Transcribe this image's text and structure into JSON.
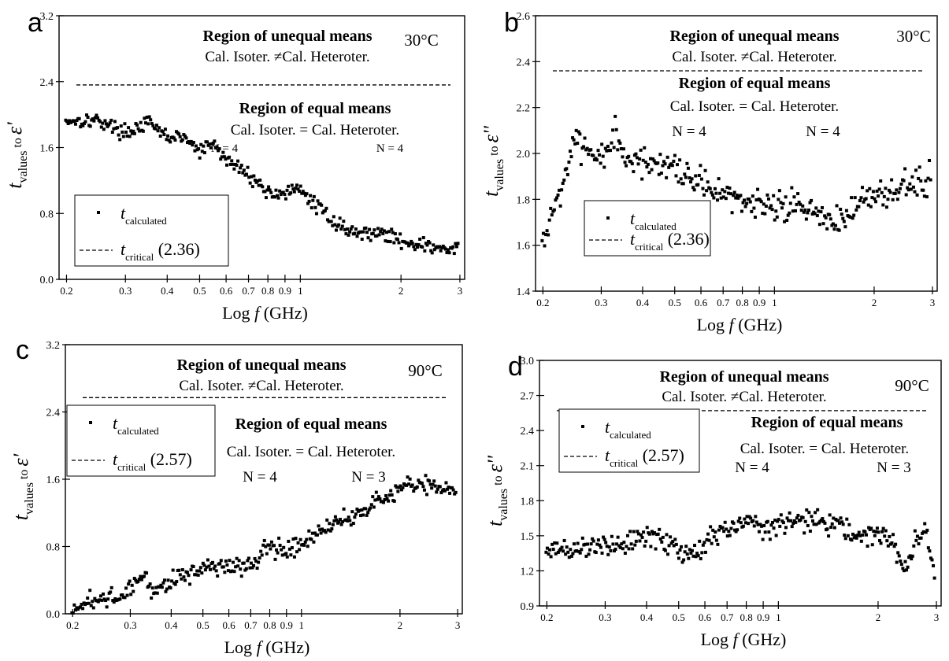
{
  "chart_data": [
    {
      "panel": "a",
      "type": "scatter",
      "temperature": "30°C",
      "ylabel": "t",
      "ylabel_sub": "values",
      "ylabel_to": "to",
      "ylabel_var": "ε'",
      "xlabel_pre": "Log ",
      "xlabel_var": "f",
      "xlabel_post": " (GHz)",
      "x_scale": "log",
      "xlim": [
        0.19,
        3.1
      ],
      "ylim": [
        0.0,
        3.2
      ],
      "x_ticks": [
        0.2,
        0.3,
        0.4,
        0.5,
        0.6,
        0.7,
        0.8,
        0.9,
        1,
        2,
        3
      ],
      "x_tick_labels": [
        "0.2",
        "0.3",
        "0.4",
        "0.5",
        "0.6",
        "0.7",
        "0.8",
        "0.9",
        "1",
        "2",
        "3"
      ],
      "y_ticks": [
        0.0,
        0.8,
        1.6,
        2.4,
        3.2
      ],
      "y_tick_labels": [
        "0.0",
        "0.8",
        "1.6",
        "2.4",
        "3.2"
      ],
      "critical_value": 2.36,
      "annotations": {
        "unequal_title": "Region of unequal means",
        "unequal_sub": "Cal. Isoter. ≠Cal. Heteroter.",
        "equal_title": "Region of equal means",
        "equal_sub": "Cal. Isoter. = Cal. Heteroter.",
        "n1": "N = 4",
        "n2": "N = 4"
      },
      "legend": {
        "calc_label": "t",
        "calc_sub": "calculated",
        "crit_label": "t",
        "crit_sub": "critical",
        "crit_value": "(2.36)",
        "placement": "bottom-left"
      },
      "trend": [
        [
          0.2,
          1.93
        ],
        [
          0.25,
          1.93
        ],
        [
          0.3,
          1.78
        ],
        [
          0.35,
          1.9
        ],
        [
          0.4,
          1.73
        ],
        [
          0.45,
          1.72
        ],
        [
          0.5,
          1.55
        ],
        [
          0.55,
          1.65
        ],
        [
          0.6,
          1.45
        ],
        [
          0.7,
          1.28
        ],
        [
          0.8,
          1.05
        ],
        [
          0.9,
          1.05
        ],
        [
          1.0,
          1.08
        ],
        [
          1.1,
          0.92
        ],
        [
          1.3,
          0.66
        ],
        [
          1.5,
          0.55
        ],
        [
          1.7,
          0.58
        ],
        [
          2.0,
          0.47
        ],
        [
          2.3,
          0.42
        ],
        [
          2.6,
          0.37
        ],
        [
          3.0,
          0.36
        ]
      ],
      "noise": 0.07
    },
    {
      "panel": "b",
      "type": "scatter",
      "temperature": "30°C",
      "ylabel": "t",
      "ylabel_sub": "values",
      "ylabel_to": "to",
      "ylabel_var": "ε''",
      "xlabel_pre": "Log ",
      "xlabel_var": "f",
      "xlabel_post": " (GHz)",
      "x_scale": "log",
      "xlim": [
        0.19,
        3.1
      ],
      "ylim": [
        1.4,
        2.6
      ],
      "x_ticks": [
        0.2,
        0.3,
        0.4,
        0.5,
        0.6,
        0.7,
        0.8,
        0.9,
        1,
        2,
        3
      ],
      "x_tick_labels": [
        "0.2",
        "0.3",
        "0.4",
        "0.5",
        "0.6",
        "0.7",
        "0.8",
        "0.9",
        "1",
        "2",
        "3"
      ],
      "y_ticks": [
        1.4,
        1.6,
        1.8,
        2.0,
        2.2,
        2.4,
        2.6
      ],
      "y_tick_labels": [
        "1.4",
        "1.6",
        "1.8",
        "2.0",
        "2.2",
        "2.4",
        "2.6"
      ],
      "critical_value": 2.36,
      "annotations": {
        "unequal_title": "Region of unequal means",
        "unequal_sub": "Cal. Isoter. ≠Cal. Heteroter.",
        "equal_title": "Region of equal means",
        "equal_sub": "Cal. Isoter. = Cal. Heteroter.",
        "n1": "N = 4",
        "n2": "N = 4"
      },
      "legend": {
        "calc_label": "t",
        "calc_sub": "calculated",
        "crit_label": "t",
        "crit_sub": "critical",
        "crit_value": "(2.36)",
        "placement": "bottom-left"
      },
      "trend": [
        [
          0.2,
          1.6
        ],
        [
          0.21,
          1.72
        ],
        [
          0.23,
          1.88
        ],
        [
          0.25,
          2.05
        ],
        [
          0.28,
          1.98
        ],
        [
          0.3,
          1.95
        ],
        [
          0.33,
          2.08
        ],
        [
          0.36,
          1.95
        ],
        [
          0.4,
          1.97
        ],
        [
          0.45,
          1.95
        ],
        [
          0.5,
          1.91
        ],
        [
          0.6,
          1.85
        ],
        [
          0.7,
          1.82
        ],
        [
          0.8,
          1.8
        ],
        [
          1.0,
          1.77
        ],
        [
          1.2,
          1.76
        ],
        [
          1.4,
          1.72
        ],
        [
          1.6,
          1.72
        ],
        [
          2.0,
          1.8
        ],
        [
          2.5,
          1.85
        ],
        [
          3.0,
          1.88
        ]
      ],
      "noise": 0.06
    },
    {
      "panel": "c",
      "type": "scatter",
      "temperature": "90°C",
      "ylabel": "t",
      "ylabel_sub": "values",
      "ylabel_to": "to",
      "ylabel_var": "ε'",
      "xlabel_pre": "Log ",
      "xlabel_var": "f",
      "xlabel_post": " (GHz)",
      "x_scale": "log",
      "xlim": [
        0.19,
        3.1
      ],
      "ylim": [
        0.0,
        3.2
      ],
      "x_ticks": [
        0.2,
        0.3,
        0.4,
        0.5,
        0.6,
        0.7,
        0.8,
        0.9,
        1,
        2,
        3
      ],
      "x_tick_labels": [
        "0.2",
        "0.3",
        "0.4",
        "0.5",
        "0.6",
        "0.7",
        "0.8",
        "0.9",
        "1",
        "2",
        "3"
      ],
      "y_ticks": [
        0.0,
        0.8,
        1.6,
        2.4,
        3.2
      ],
      "y_tick_labels": [
        "0.0",
        "0.8",
        "1.6",
        "2.4",
        "3.2"
      ],
      "critical_value": 2.57,
      "annotations": {
        "unequal_title": "Region of unequal means",
        "unequal_sub": "Cal. Isoter. ≠Cal. Heteroter.",
        "equal_title": "Region of equal means",
        "equal_sub": "Cal. Isoter. = Cal. Heteroter.",
        "n1": "N = 4",
        "n2": "N = 3"
      },
      "legend": {
        "calc_label": "t",
        "calc_sub": "calculated",
        "crit_label": "t",
        "crit_sub": "critical",
        "crit_value": "(2.57)",
        "placement": "top-left"
      },
      "trend": [
        [
          0.2,
          0.03
        ],
        [
          0.22,
          0.12
        ],
        [
          0.25,
          0.2
        ],
        [
          0.28,
          0.17
        ],
        [
          0.3,
          0.3
        ],
        [
          0.33,
          0.45
        ],
        [
          0.36,
          0.25
        ],
        [
          0.4,
          0.4
        ],
        [
          0.45,
          0.45
        ],
        [
          0.5,
          0.58
        ],
        [
          0.6,
          0.55
        ],
        [
          0.7,
          0.58
        ],
        [
          0.8,
          0.8
        ],
        [
          0.9,
          0.75
        ],
        [
          1.0,
          0.85
        ],
        [
          1.2,
          1.05
        ],
        [
          1.4,
          1.15
        ],
        [
          1.6,
          1.3
        ],
        [
          1.8,
          1.35
        ],
        [
          2.0,
          1.5
        ],
        [
          2.3,
          1.55
        ],
        [
          2.6,
          1.5
        ],
        [
          3.0,
          1.52
        ]
      ],
      "noise": 0.09
    },
    {
      "panel": "d",
      "type": "scatter",
      "temperature": "90°C",
      "ylabel": "t",
      "ylabel_sub": "values",
      "ylabel_to": "to",
      "ylabel_var": "ε''",
      "xlabel_pre": "Log ",
      "xlabel_var": "f",
      "xlabel_post": " (GHz)",
      "x_scale": "log",
      "xlim": [
        0.19,
        3.1
      ],
      "ylim": [
        0.9,
        3.0
      ],
      "x_ticks": [
        0.2,
        0.3,
        0.4,
        0.5,
        0.6,
        0.7,
        0.8,
        0.9,
        1,
        2,
        3
      ],
      "x_tick_labels": [
        "0.2",
        "0.3",
        "0.4",
        "0.5",
        "0.6",
        "0.7",
        "0.8",
        "0.9",
        "1",
        "2",
        "3"
      ],
      "y_ticks": [
        0.9,
        1.2,
        1.5,
        1.8,
        2.1,
        2.4,
        2.7,
        3.0
      ],
      "y_tick_labels": [
        "0.9",
        "1.2",
        "1.5",
        "1.8",
        "2.1",
        "2.4",
        "2.7",
        "3.0"
      ],
      "critical_value": 2.57,
      "annotations": {
        "unequal_title": "Region of unequal means",
        "unequal_sub": "Cal. Isoter. ≠Cal. Heteroter.",
        "equal_title": "Region of equal means",
        "equal_sub": "Cal. Isoter. = Cal. Heteroter.",
        "n1": "N = 4",
        "n2": "N = 3"
      },
      "legend": {
        "calc_label": "t",
        "calc_sub": "calculated",
        "crit_label": "t",
        "crit_sub": "critical",
        "crit_value": "(2.57)",
        "placement": "top-left"
      },
      "trend": [
        [
          0.2,
          1.38
        ],
        [
          0.25,
          1.4
        ],
        [
          0.3,
          1.4
        ],
        [
          0.35,
          1.45
        ],
        [
          0.4,
          1.5
        ],
        [
          0.45,
          1.45
        ],
        [
          0.5,
          1.38
        ],
        [
          0.55,
          1.35
        ],
        [
          0.6,
          1.45
        ],
        [
          0.7,
          1.55
        ],
        [
          0.8,
          1.6
        ],
        [
          0.9,
          1.55
        ],
        [
          1.0,
          1.62
        ],
        [
          1.2,
          1.62
        ],
        [
          1.5,
          1.6
        ],
        [
          1.8,
          1.5
        ],
        [
          2.0,
          1.5
        ],
        [
          2.2,
          1.45
        ],
        [
          2.4,
          1.2
        ],
        [
          2.6,
          1.45
        ],
        [
          2.8,
          1.55
        ],
        [
          3.0,
          1.1
        ]
      ],
      "noise": 0.08
    }
  ]
}
